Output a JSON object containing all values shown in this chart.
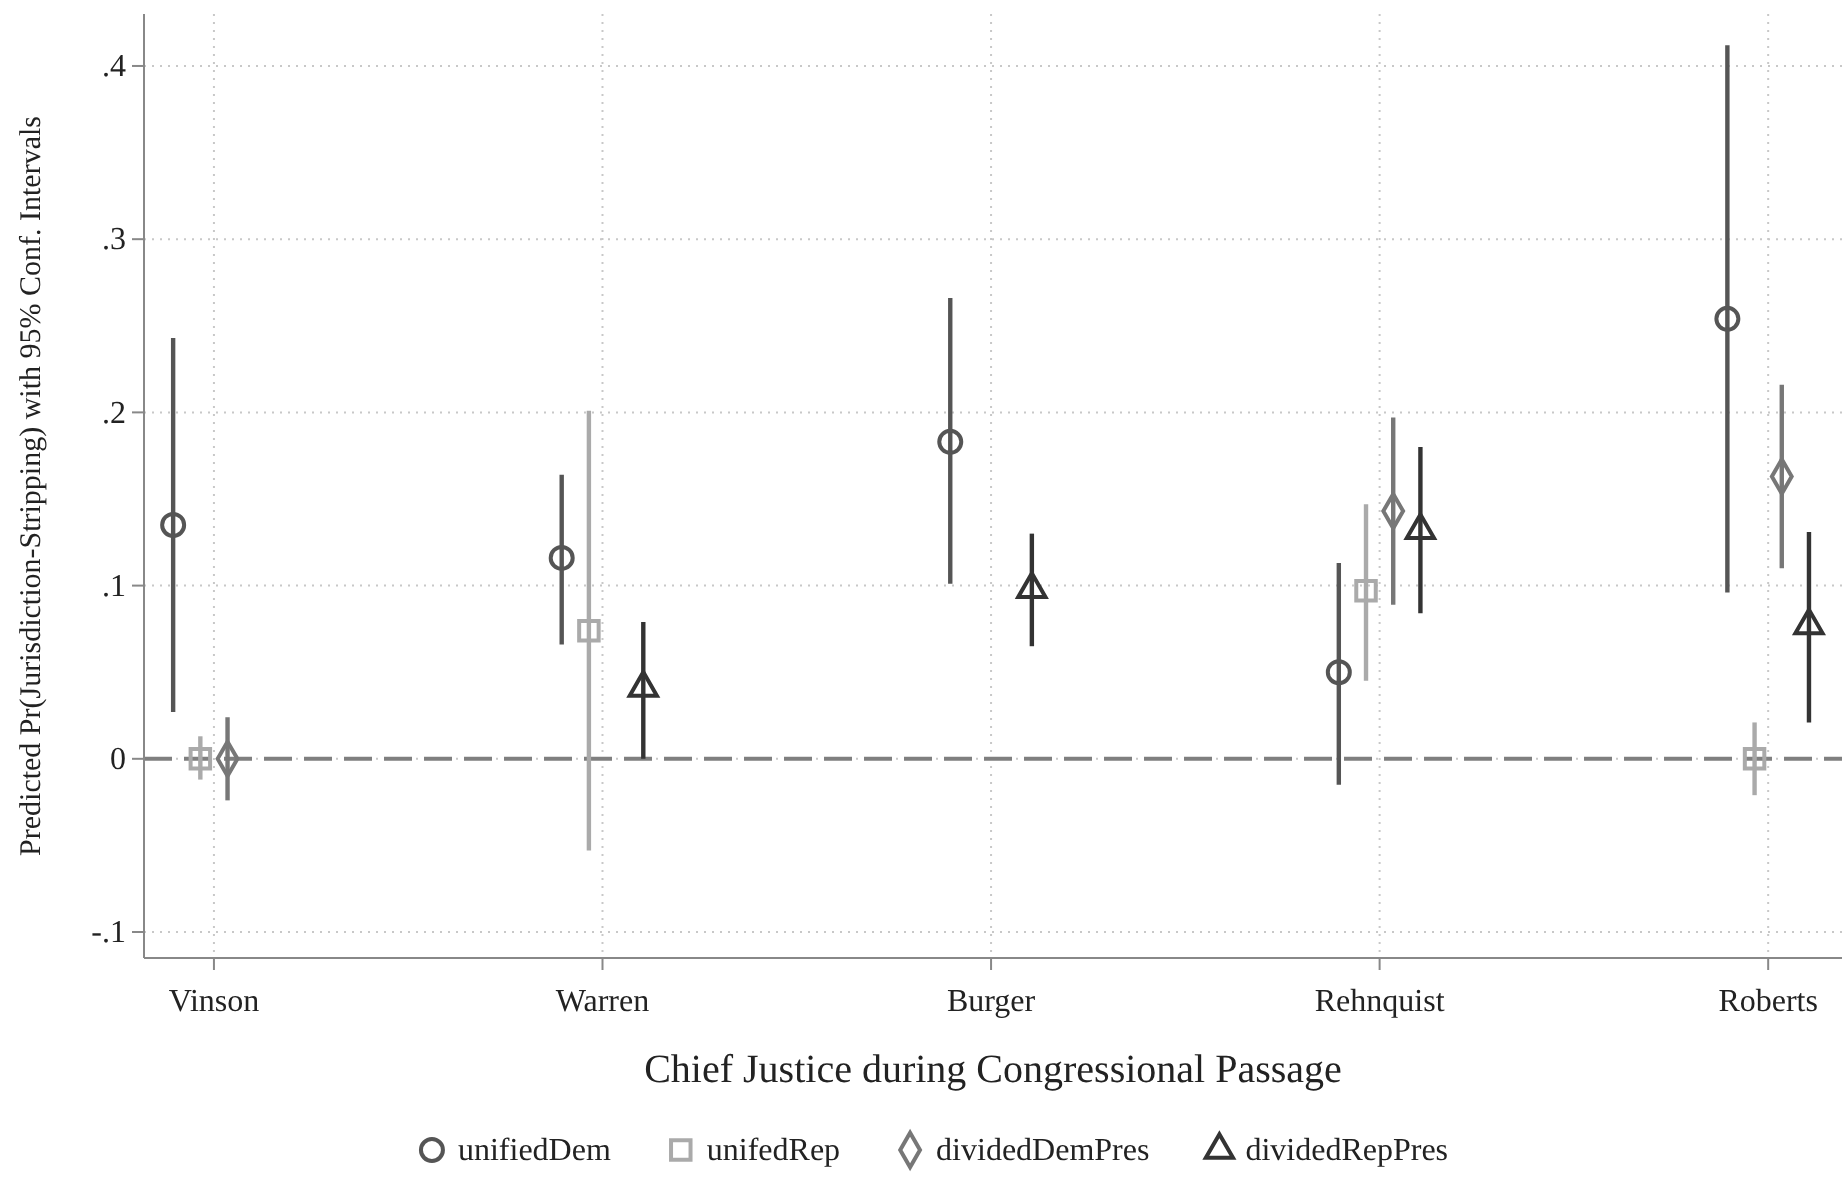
{
  "chart_data": {
    "type": "scatter",
    "xlabel": "Chief Justice during Congressional Passage",
    "ylabel": "Predicted Pr(Jurisdiction-Stripping) with 95% Conf. Intervals",
    "categories": [
      "Vinson",
      "Warren",
      "Burger",
      "Rehnquist",
      "Roberts"
    ],
    "ylim": [
      -0.115,
      0.43
    ],
    "yticks": [
      {
        "value": -0.1,
        "label": "-.1"
      },
      {
        "value": 0,
        "label": "0"
      },
      {
        "value": 0.1,
        "label": ".1"
      },
      {
        "value": 0.2,
        "label": ".2"
      },
      {
        "value": 0.3,
        "label": ".3"
      },
      {
        "value": 0.4,
        "label": ".4"
      }
    ],
    "grid": true,
    "legend": "bottom",
    "line_style": "solid",
    "ref_lines": [
      {
        "axis": "y",
        "value": 0,
        "color": "#7f7f7f",
        "line_style": "dashed"
      }
    ],
    "series": [
      {
        "name": "unifiedDem",
        "color": "#555555",
        "marker": "circle",
        "values": [
          0.135,
          0.116,
          0.183,
          0.05,
          0.254
        ],
        "errors": [
          [
            0.027,
            0.243
          ],
          [
            0.066,
            0.164
          ],
          [
            0.101,
            0.266
          ],
          [
            -0.015,
            0.113
          ],
          [
            0.096,
            0.412
          ]
        ]
      },
      {
        "name": "unifedRep",
        "color": "#aaaaaa",
        "marker": "square",
        "values": [
          0,
          0.074,
          null,
          0.097,
          0
        ],
        "errors": [
          [
            -0.012,
            0.013
          ],
          [
            -0.053,
            0.201
          ],
          null,
          [
            0.045,
            0.147
          ],
          [
            -0.021,
            0.021
          ]
        ]
      },
      {
        "name": "dividedDemPres",
        "color": "#777777",
        "marker": "diamond",
        "values": [
          0,
          null,
          null,
          0.143,
          0.163
        ],
        "errors": [
          [
            -0.024,
            0.024
          ],
          null,
          null,
          [
            0.089,
            0.197
          ],
          [
            0.11,
            0.216
          ]
        ]
      },
      {
        "name": "dividedRepPres",
        "color": "#333333",
        "marker": "triangle",
        "values": [
          null,
          0.041,
          0.098,
          0.132,
          0.077
        ],
        "errors": [
          null,
          [
            0,
            0.079
          ],
          [
            0.065,
            0.13
          ],
          [
            0.084,
            0.18
          ],
          [
            0.021,
            0.131
          ]
        ]
      }
    ]
  }
}
